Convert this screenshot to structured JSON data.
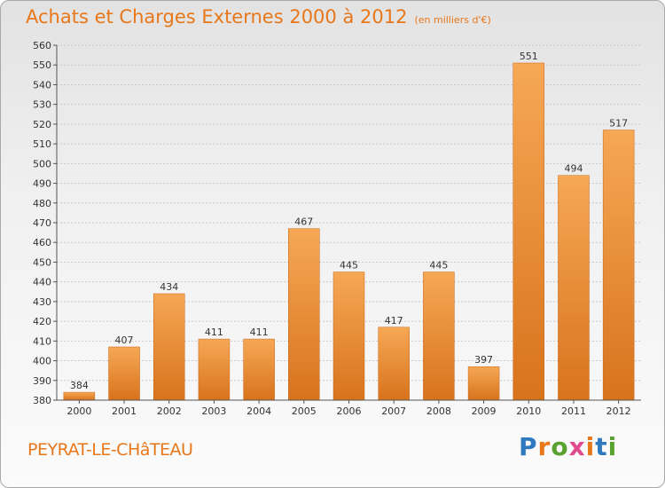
{
  "title": "Achats et Charges Externes 2000 à 2012",
  "subtitle": "(en milliers d'€)",
  "commune": "PEYRAT-LE-CHâTEAU",
  "logo": {
    "letters": [
      "P",
      "r",
      "o",
      "x",
      "i",
      "t",
      "i"
    ],
    "colors": [
      "#2f79c0",
      "#e8771a",
      "#5aa22f",
      "#e04b8f",
      "#e8771a",
      "#2f79c0",
      "#5aa22f"
    ]
  },
  "colors": {
    "bar_top": "#f6a855",
    "bar_bottom": "#d8731c",
    "accent": "#e8771a"
  },
  "chart_data": {
    "type": "bar",
    "title": "Achats et Charges Externes 2000 à 2012",
    "subtitle": "(en milliers d'€)",
    "categories": [
      "2000",
      "2001",
      "2002",
      "2003",
      "2004",
      "2005",
      "2006",
      "2007",
      "2008",
      "2009",
      "2010",
      "2011",
      "2012"
    ],
    "values": [
      384,
      407,
      434,
      411,
      411,
      467,
      445,
      417,
      445,
      397,
      551,
      494,
      517
    ],
    "ylim": [
      380,
      560
    ],
    "yticks": [
      380,
      390,
      400,
      410,
      420,
      430,
      440,
      450,
      460,
      470,
      480,
      490,
      500,
      510,
      520,
      530,
      540,
      550,
      560
    ],
    "grid": true,
    "xlabel": "",
    "ylabel": ""
  }
}
